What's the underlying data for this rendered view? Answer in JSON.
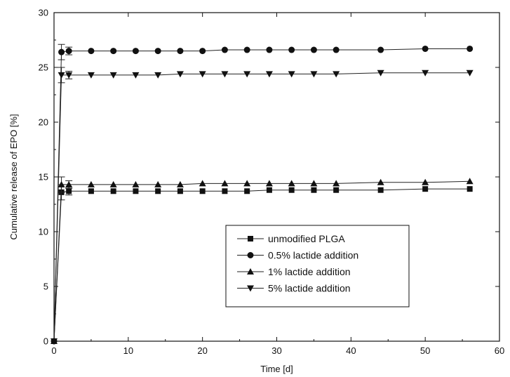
{
  "chart_data": {
    "type": "line",
    "title": "",
    "xlabel": "Time [d]",
    "ylabel": "Cumulative release of EPO [%]",
    "xlim": [
      0,
      60
    ],
    "ylim": [
      0,
      30
    ],
    "xticks": [
      0,
      10,
      20,
      30,
      40,
      50,
      60
    ],
    "yticks": [
      0,
      5,
      10,
      15,
      20,
      25,
      30
    ],
    "grid": false,
    "legend_position": "bottom-right",
    "x": [
      0,
      1,
      2,
      5,
      8,
      11,
      14,
      17,
      20,
      23,
      26,
      29,
      32,
      35,
      38,
      44,
      50,
      56
    ],
    "series": [
      {
        "name": "unmodified PLGA",
        "marker": "square",
        "values": [
          0,
          13.6,
          13.7,
          13.7,
          13.7,
          13.7,
          13.7,
          13.7,
          13.7,
          13.7,
          13.7,
          13.8,
          13.8,
          13.8,
          13.8,
          13.8,
          13.9,
          13.9
        ]
      },
      {
        "name": "0.5% lactide addition",
        "marker": "circle",
        "values": [
          0,
          26.4,
          26.5,
          26.5,
          26.5,
          26.5,
          26.5,
          26.5,
          26.5,
          26.6,
          26.6,
          26.6,
          26.6,
          26.6,
          26.6,
          26.6,
          26.7,
          26.7
        ]
      },
      {
        "name": "1% lactide addition",
        "marker": "triangle-up",
        "values": [
          0,
          14.3,
          14.3,
          14.3,
          14.3,
          14.3,
          14.3,
          14.3,
          14.4,
          14.4,
          14.4,
          14.4,
          14.4,
          14.4,
          14.4,
          14.5,
          14.5,
          14.6
        ]
      },
      {
        "name": "5% lactide addition",
        "marker": "triangle-down",
        "values": [
          0,
          24.3,
          24.3,
          24.3,
          24.3,
          24.3,
          24.3,
          24.4,
          24.4,
          24.4,
          24.4,
          24.4,
          24.4,
          24.4,
          24.4,
          24.5,
          24.5,
          24.5
        ]
      }
    ]
  }
}
